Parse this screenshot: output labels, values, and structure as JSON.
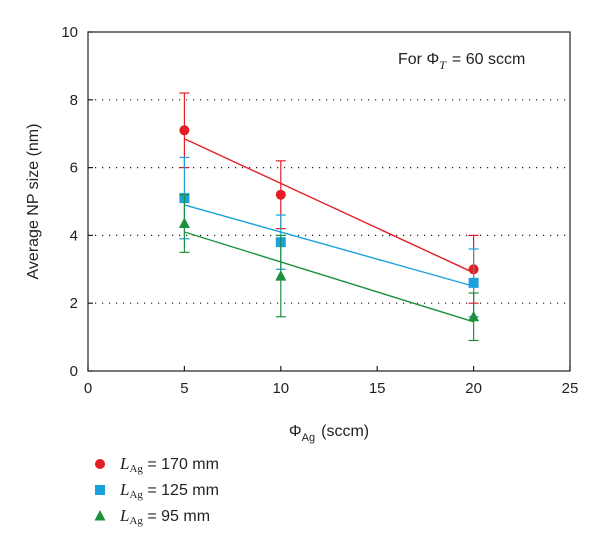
{
  "chart_data": {
    "type": "scatter",
    "xlabel": "Φ",
    "xlabel_sub": "Ag",
    "xlabel_unit": "(sccm)",
    "ylabel": "Average NP size (nm)",
    "xlim": [
      0,
      25
    ],
    "ylim": [
      0,
      10
    ],
    "xticks": [
      "0",
      "5",
      "10",
      "15",
      "20",
      "25"
    ],
    "yticks": [
      "0",
      "2",
      "4",
      "6",
      "8",
      "10"
    ],
    "grid": "horizontal dotted",
    "annotation": {
      "prefix": "For Φ",
      "sub": "T",
      "suffix": "= 60 sccm",
      "placement": "top-right"
    },
    "legend_placement": "bottom-left below plot",
    "series": [
      {
        "label_prefix": "L",
        "label_sub": "Ag",
        "label_suffix": "= 170 mm",
        "color": "#e31e24",
        "marker": "circle",
        "x": [
          5,
          10,
          20
        ],
        "y": [
          7.1,
          5.2,
          3.0
        ],
        "err": [
          1.1,
          1.0,
          1.0
        ],
        "fit": [
          [
            5,
            6.85
          ],
          [
            20,
            2.9
          ]
        ]
      },
      {
        "label_prefix": "L",
        "label_sub": "Ag",
        "label_suffix": "= 125 mm",
        "color": "#1ba1dc",
        "marker": "square",
        "x": [
          5,
          10,
          20
        ],
        "y": [
          5.1,
          3.8,
          2.6
        ],
        "err": [
          1.2,
          0.8,
          1.0
        ],
        "fit": [
          [
            5,
            4.9
          ],
          [
            20,
            2.5
          ]
        ]
      },
      {
        "label_prefix": "L",
        "label_sub": "Ag",
        "label_suffix": "= 95 mm",
        "color": "#1e8f3c",
        "marker": "triangle",
        "x": [
          5,
          10,
          20
        ],
        "y": [
          4.35,
          2.8,
          1.6
        ],
        "err": [
          0.85,
          1.2,
          0.7
        ],
        "fit": [
          [
            5,
            4.1
          ],
          [
            20,
            1.45
          ]
        ]
      }
    ]
  }
}
